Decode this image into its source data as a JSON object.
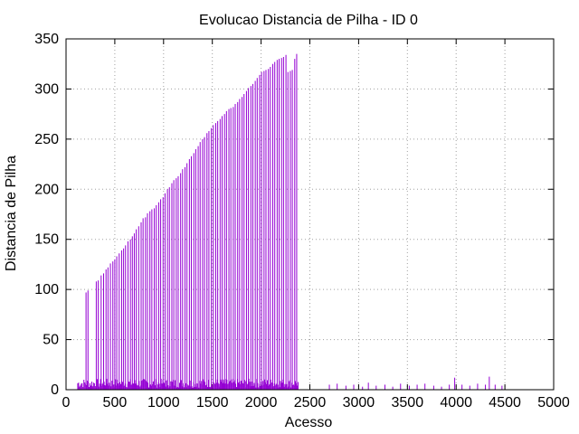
{
  "chart_data": {
    "type": "bar",
    "title": "Evolucao Distancia de Pilha - ID 0",
    "xlabel": "Acesso",
    "ylabel": "Distancia de Pilha",
    "xlim": [
      0,
      5000
    ],
    "ylim": [
      0,
      350
    ],
    "x_ticks": [
      "0",
      "500",
      "1000",
      "1500",
      "2000",
      "2500",
      "3000",
      "3500",
      "4000",
      "4500",
      "5000"
    ],
    "y_ticks": [
      "0",
      "50",
      "100",
      "150",
      "200",
      "250",
      "300",
      "350"
    ],
    "grid": true,
    "legend": "none",
    "series_color": "#9400D3",
    "x": [
      205,
      225,
      310,
      330,
      360,
      385,
      410,
      430,
      455,
      480,
      500,
      520,
      545,
      570,
      590,
      610,
      635,
      660,
      680,
      700,
      720,
      745,
      770,
      790,
      815,
      835,
      860,
      880,
      905,
      925,
      950,
      970,
      995,
      1015,
      1040,
      1060,
      1085,
      1105,
      1130,
      1150,
      1175,
      1195,
      1220,
      1240,
      1265,
      1285,
      1310,
      1330,
      1355,
      1375,
      1400,
      1420,
      1445,
      1465,
      1490,
      1510,
      1535,
      1555,
      1580,
      1600,
      1625,
      1645,
      1670,
      1690,
      1715,
      1735,
      1760,
      1780,
      1805,
      1825,
      1850,
      1870,
      1895,
      1915,
      1940,
      1960,
      1985,
      2005,
      2030,
      2050,
      2075,
      2095,
      2120,
      2140,
      2165,
      2185,
      2210,
      2230,
      2255,
      2275,
      2300,
      2320,
      2345,
      2365
    ],
    "values": [
      97,
      99,
      108,
      109,
      114,
      116,
      120,
      122,
      126,
      128,
      130,
      133,
      136,
      139,
      141,
      144,
      148,
      150,
      153,
      156,
      160,
      163,
      167,
      171,
      172,
      176,
      178,
      180,
      181,
      184,
      187,
      190,
      192,
      196,
      200,
      202,
      206,
      209,
      211,
      213,
      216,
      220,
      222,
      226,
      230,
      233,
      236,
      240,
      243,
      247,
      250,
      252,
      256,
      258,
      261,
      264,
      266,
      268,
      270,
      273,
      275,
      278,
      280,
      281,
      282,
      285,
      287,
      290,
      292,
      295,
      298,
      301,
      303,
      305,
      308,
      311,
      314,
      317,
      318,
      319,
      320,
      322,
      325,
      327,
      329,
      330,
      331,
      332,
      334,
      317,
      318,
      319,
      330,
      335
    ],
    "low_x": [
      2700,
      2780,
      2870,
      2950,
      3040,
      3100,
      3180,
      3270,
      3350,
      3430,
      3520,
      3600,
      3680,
      3770,
      3850,
      3930,
      3985,
      4060,
      4140,
      4220,
      4300,
      4340,
      4400,
      4470
    ],
    "low_values": [
      5,
      6,
      4,
      5,
      3,
      7,
      4,
      5,
      3,
      6,
      4,
      5,
      6,
      4,
      3,
      5,
      12,
      5,
      4,
      6,
      5,
      13,
      5,
      4
    ]
  }
}
